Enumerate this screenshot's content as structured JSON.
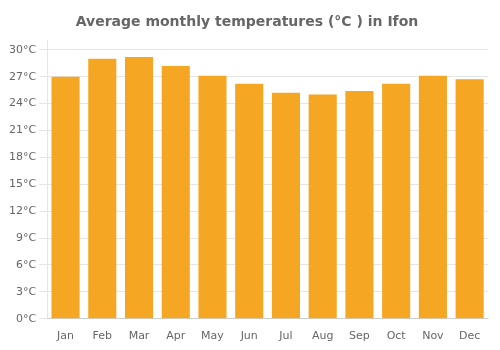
{
  "chart_data": {
    "type": "bar",
    "title": "Average monthly temperatures (°C ) in Ifon",
    "categories": [
      "Jan",
      "Feb",
      "Mar",
      "Apr",
      "May",
      "Jun",
      "Jul",
      "Aug",
      "Sep",
      "Oct",
      "Nov",
      "Dec"
    ],
    "values": [
      27.0,
      29.0,
      29.2,
      28.2,
      27.1,
      26.2,
      25.2,
      25.0,
      25.4,
      26.2,
      27.1,
      26.7
    ],
    "color": "#F5A623",
    "ylim": [
      0,
      31
    ],
    "yticks": [
      {
        "value": 0,
        "label": "0°C"
      },
      {
        "value": 3,
        "label": "3°C"
      },
      {
        "value": 6,
        "label": "6°C"
      },
      {
        "value": 9,
        "label": "9°C"
      },
      {
        "value": 12,
        "label": "12°C"
      },
      {
        "value": 15,
        "label": "15°C"
      },
      {
        "value": 18,
        "label": "18°C"
      },
      {
        "value": 21,
        "label": "21°C"
      },
      {
        "value": 24,
        "label": "24°C"
      },
      {
        "value": 27,
        "label": "27°C"
      },
      {
        "value": 30,
        "label": "30°C"
      }
    ],
    "grid": true
  }
}
